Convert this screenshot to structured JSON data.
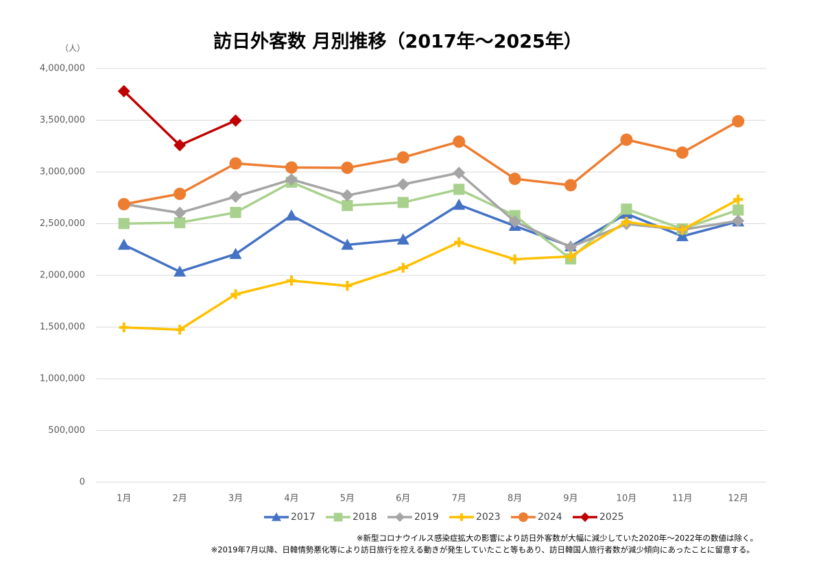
{
  "chart_data": {
    "type": "line",
    "title": "訪日外客数 月別推移（2017年～2025年）",
    "y_unit": "（人）",
    "categories": [
      "1月",
      "2月",
      "3月",
      "4月",
      "5月",
      "6月",
      "7月",
      "8月",
      "9月",
      "10月",
      "11月",
      "12月"
    ],
    "series": [
      {
        "name": "2017",
        "color": "#4472c4",
        "marker": "triangle",
        "values": [
          2295000,
          2036000,
          2206000,
          2578000,
          2295000,
          2346000,
          2682000,
          2478000,
          2280000,
          2595000,
          2378000,
          2521000
        ]
      },
      {
        "name": "2018",
        "color": "#a9d18e",
        "marker": "square",
        "values": [
          2501000,
          2509000,
          2608000,
          2901000,
          2675000,
          2705000,
          2832000,
          2578000,
          2159000,
          2641000,
          2449000,
          2632000
        ]
      },
      {
        "name": "2019",
        "color": "#a5a5a5",
        "marker": "diamond",
        "values": [
          2689000,
          2604000,
          2761000,
          2927000,
          2773000,
          2880000,
          2991000,
          2520000,
          2273000,
          2497000,
          2441000,
          2527000
        ]
      },
      {
        "name": "2023",
        "color": "#ffc000",
        "marker": "plus",
        "values": [
          1497000,
          1475000,
          1817000,
          1949000,
          1899000,
          2073000,
          2320000,
          2156000,
          2183000,
          2517000,
          2441000,
          2734000
        ]
      },
      {
        "name": "2024",
        "color": "#ed7d31",
        "marker": "circle",
        "values": [
          2688000,
          2788000,
          3082000,
          3043000,
          3040000,
          3140000,
          3293000,
          2933000,
          2872000,
          3312000,
          3187000,
          3490000
        ]
      },
      {
        "name": "2025",
        "color": "#c00000",
        "marker": "diamond",
        "values": [
          3781000,
          3258000,
          3497000,
          null,
          null,
          null,
          null,
          null,
          null,
          null,
          null,
          null
        ]
      }
    ],
    "ylim": [
      0,
      4000000
    ],
    "yticks": [
      0,
      {
        "value": 500000,
        "label": "500,000"
      },
      {
        "value": 1000000,
        "label": "1,000,000"
      },
      {
        "value": 1500000,
        "label": "1,500,000"
      },
      {
        "value": 2000000,
        "label": "2,000,000"
      },
      {
        "value": 2500000,
        "label": "2,500,000"
      },
      {
        "value": 3000000,
        "label": "3,000,000"
      },
      {
        "value": 3500000,
        "label": "3,500,000"
      },
      {
        "value": 4000000,
        "label": "4,000,000"
      }
    ],
    "grid": true,
    "legend": "bottom",
    "notes": [
      "※新型コロナウイルス感染症拡大の影響により訪日外客数が大幅に減少していた2020年～2022年の数値は除く。",
      "※2019年7月以降、日韓情勢悪化等により訪日旅行を控える動きが発生していたこと等もあり、訪日韓国人旅行者数が減少傾向にあったことに留意する。"
    ]
  }
}
